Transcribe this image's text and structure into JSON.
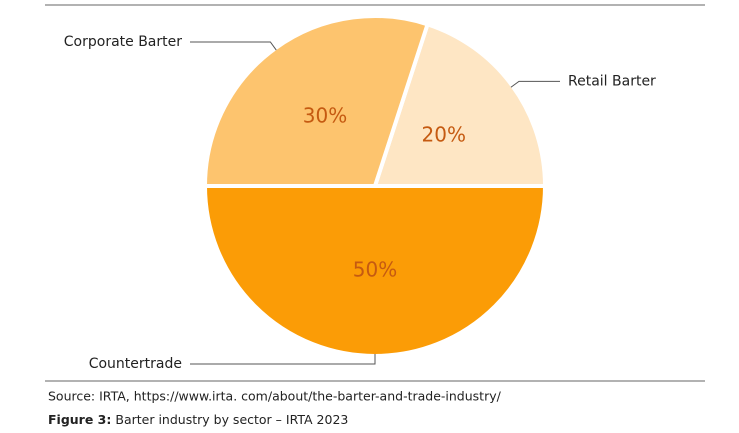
{
  "chart_data": {
    "type": "pie",
    "categories": [
      "Retail Barter",
      "Countertrade",
      "Corporate Barter"
    ],
    "values": [
      20,
      50,
      30
    ],
    "value_labels": [
      "20%",
      "50%",
      "30%"
    ],
    "colors": [
      "#fee6c4",
      "#fb9c06",
      "#fdc46e"
    ],
    "label_color": "#c55a11",
    "source": "Source: IRTA, https://www.irta. com/about/the-barter-and-trade-industry/",
    "figure_label": "Figure 3:",
    "caption": "Barter industry by sector – IRTA 2023"
  }
}
